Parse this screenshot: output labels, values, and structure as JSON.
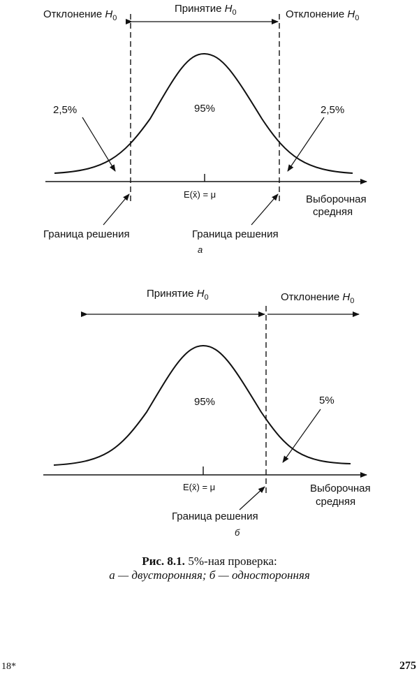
{
  "figure_a": {
    "reject_left": "Отклонение",
    "accept": "Принятие",
    "reject_right": "Отклонение",
    "h_letter": "H",
    "h_sub": "0",
    "tail_left": "2,5%",
    "tail_right": "2,5%",
    "center_pct": "95%",
    "mean_label": "E(x̄) = μ",
    "axis_label_1": "Выборочная",
    "axis_label_2": "средняя",
    "boundary_left": "Граница решения",
    "boundary_right": "Граница решения",
    "sub_label": "а"
  },
  "figure_b": {
    "accept": "Принятие",
    "reject": "Отклонение",
    "h_letter": "H",
    "h_sub": "0",
    "center_pct": "95%",
    "tail_pct": "5%",
    "mean_label": "E(x̄) = μ",
    "axis_label_1": "Выборочная",
    "axis_label_2": "средняя",
    "boundary": "Граница решения",
    "sub_label": "б"
  },
  "caption": {
    "fig_num": "Рис. 8.1.",
    "title": "5%-ная проверка:",
    "line2": "а — двусторонняя; б — односторонняя"
  },
  "footer": {
    "signature": "18*",
    "page_number": "275"
  }
}
